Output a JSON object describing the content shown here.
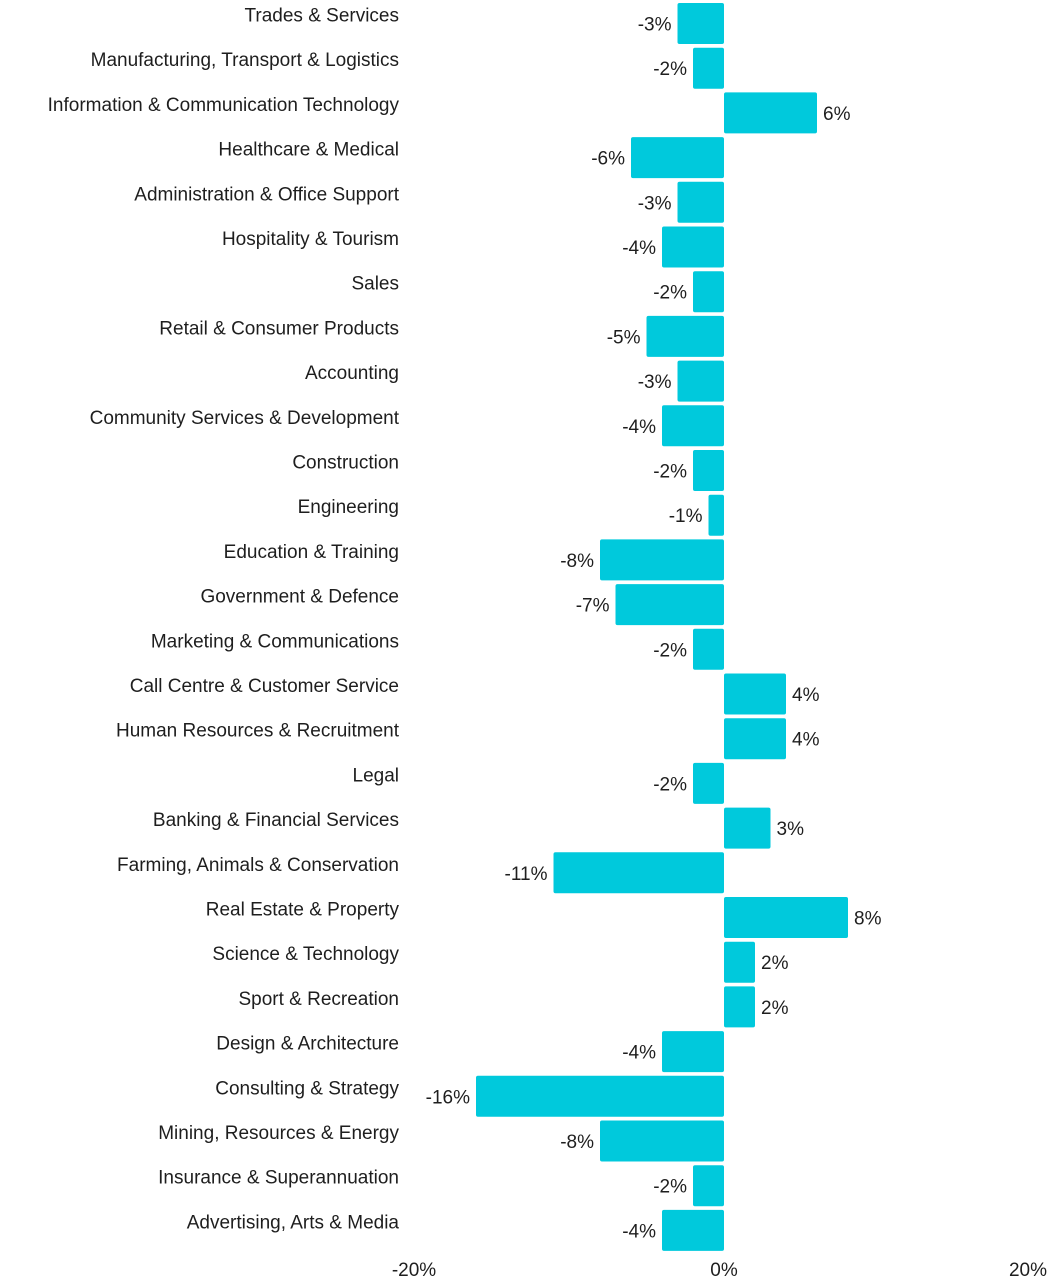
{
  "chart_data": {
    "type": "bar",
    "orientation": "horizontal",
    "title": "",
    "xlabel": "",
    "ylabel": "",
    "xlim": [
      -20,
      20
    ],
    "x_ticks": [
      "-20%",
      "0%",
      "20%"
    ],
    "grid": false,
    "bar_color": "#00c9dc",
    "categories": [
      "Trades & Services",
      "Manufacturing, Transport & Logistics",
      "Information & Communication Technology",
      "Healthcare & Medical",
      "Administration & Office Support",
      "Hospitality & Tourism",
      "Sales",
      "Retail & Consumer Products",
      "Accounting",
      "Community Services & Development",
      "Construction",
      "Engineering",
      "Education & Training",
      "Government & Defence",
      "Marketing & Communications",
      "Call Centre & Customer Service",
      "Human Resources & Recruitment",
      "Legal",
      "Banking & Financial Services",
      "Farming, Animals & Conservation",
      "Real Estate & Property",
      "Science & Technology",
      "Sport & Recreation",
      "Design & Architecture",
      "Consulting & Strategy",
      "Mining, Resources & Energy",
      "Insurance & Superannuation",
      "Advertising, Arts & Media"
    ],
    "values": [
      -3,
      -2,
      6,
      -6,
      -3,
      -4,
      -2,
      -5,
      -3,
      -4,
      -2,
      -1,
      -8,
      -7,
      -2,
      4,
      4,
      -2,
      3,
      -11,
      8,
      2,
      2,
      -4,
      -16,
      -8,
      -2,
      -4
    ],
    "value_labels": [
      "-3%",
      "-2%",
      "6%",
      "-6%",
      "-3%",
      "-4%",
      "-2%",
      "-5%",
      "-3%",
      "-4%",
      "-2%",
      "-1%",
      "-8%",
      "-7%",
      "-2%",
      "4%",
      "4%",
      "-2%",
      "3%",
      "-11%",
      "8%",
      "2%",
      "2%",
      "-4%",
      "-16%",
      "-8%",
      "-2%",
      "-4%"
    ]
  }
}
